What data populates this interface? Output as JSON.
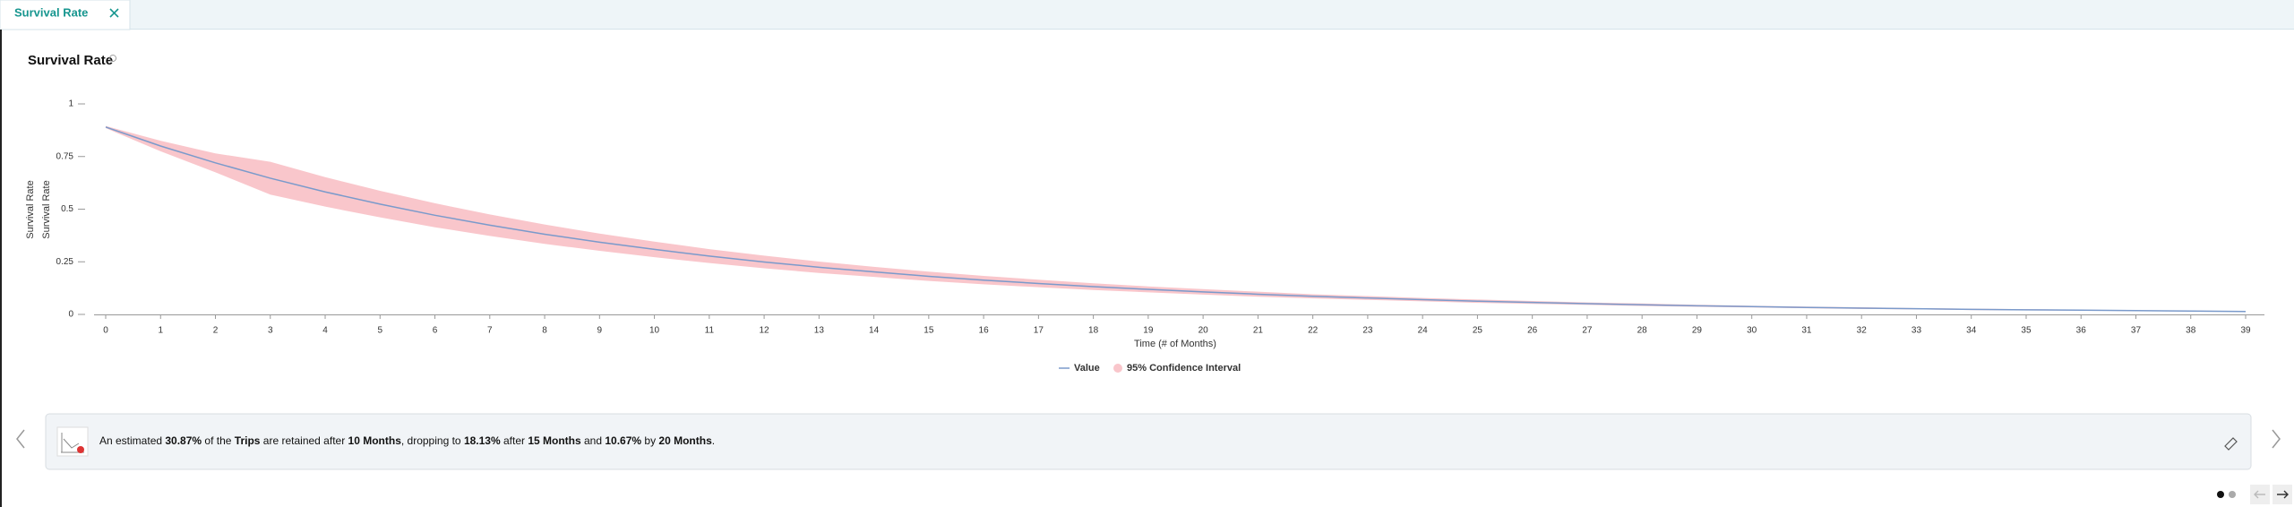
{
  "tab": {
    "label": "Survival Rate"
  },
  "chart_data": {
    "type": "line",
    "title": "Survival Rate",
    "y_label": "Survival Rate",
    "x_label": "Time (# of Months)",
    "x": [
      0,
      1,
      2,
      3,
      4,
      5,
      6,
      7,
      8,
      9,
      10,
      11,
      12,
      13,
      14,
      15,
      16,
      17,
      18,
      19,
      20,
      21,
      22,
      23,
      24,
      25,
      26,
      27,
      28,
      29,
      30,
      31,
      32,
      33,
      34,
      35,
      36,
      37,
      38,
      39
    ],
    "series": [
      {
        "name": "Value",
        "color": "#7a9acb",
        "values": [
          0.89,
          0.8,
          0.72,
          0.647,
          0.582,
          0.524,
          0.471,
          0.424,
          0.381,
          0.343,
          0.309,
          0.277,
          0.249,
          0.224,
          0.202,
          0.181,
          0.163,
          0.147,
          0.132,
          0.119,
          0.107,
          0.096,
          0.086,
          0.078,
          0.07,
          0.063,
          0.057,
          0.051,
          0.046,
          0.041,
          0.037,
          0.033,
          0.03,
          0.027,
          0.024,
          0.022,
          0.02,
          0.018,
          0.016,
          0.014
        ]
      }
    ],
    "band": {
      "name": "95% Confidence Interval",
      "color": "#f9c6cb",
      "lower": [
        0.885,
        0.775,
        0.675,
        0.569,
        0.512,
        0.461,
        0.414,
        0.373,
        0.335,
        0.302,
        0.272,
        0.244,
        0.219,
        0.197,
        0.178,
        0.159,
        0.143,
        0.129,
        0.116,
        0.105,
        0.094,
        0.084,
        0.076,
        0.069,
        0.062,
        0.055,
        0.05,
        0.045,
        0.04,
        0.036,
        0.033,
        0.029,
        0.026,
        0.024,
        0.021,
        0.019,
        0.018,
        0.016,
        0.014,
        0.012
      ],
      "upper": [
        0.895,
        0.825,
        0.765,
        0.725,
        0.652,
        0.587,
        0.528,
        0.475,
        0.427,
        0.384,
        0.346,
        0.31,
        0.279,
        0.251,
        0.226,
        0.203,
        0.183,
        0.165,
        0.148,
        0.133,
        0.12,
        0.108,
        0.096,
        0.087,
        0.078,
        0.071,
        0.064,
        0.057,
        0.052,
        0.046,
        0.041,
        0.037,
        0.034,
        0.03,
        0.027,
        0.025,
        0.022,
        0.02,
        0.018,
        0.016
      ]
    },
    "xlim": [
      0,
      39
    ],
    "xticks": [
      0,
      1,
      2,
      3,
      4,
      5,
      6,
      7,
      8,
      9,
      10,
      11,
      12,
      13,
      14,
      15,
      16,
      17,
      18,
      19,
      20,
      21,
      22,
      23,
      24,
      25,
      26,
      27,
      28,
      29,
      30,
      31,
      32,
      33,
      34,
      35,
      36,
      37,
      38,
      39
    ],
    "ylim": [
      0,
      1
    ],
    "yticks": [
      0,
      0.25,
      0.5,
      0.75,
      1
    ],
    "grid": false
  },
  "insight": {
    "parts": [
      {
        "text": "An estimated ",
        "bold": false
      },
      {
        "text": "30.87%",
        "bold": true
      },
      {
        "text": " of the ",
        "bold": false
      },
      {
        "text": "Trips",
        "bold": true
      },
      {
        "text": " are retained after ",
        "bold": false
      },
      {
        "text": "10 Months",
        "bold": true
      },
      {
        "text": ", dropping to ",
        "bold": false
      },
      {
        "text": "18.13%",
        "bold": true
      },
      {
        "text": " after ",
        "bold": false
      },
      {
        "text": "15 Months",
        "bold": true
      },
      {
        "text": " and ",
        "bold": false
      },
      {
        "text": "10.67%",
        "bold": true
      },
      {
        "text": " by ",
        "bold": false
      },
      {
        "text": "20 Months",
        "bold": true
      },
      {
        "text": ".",
        "bold": false
      }
    ]
  }
}
